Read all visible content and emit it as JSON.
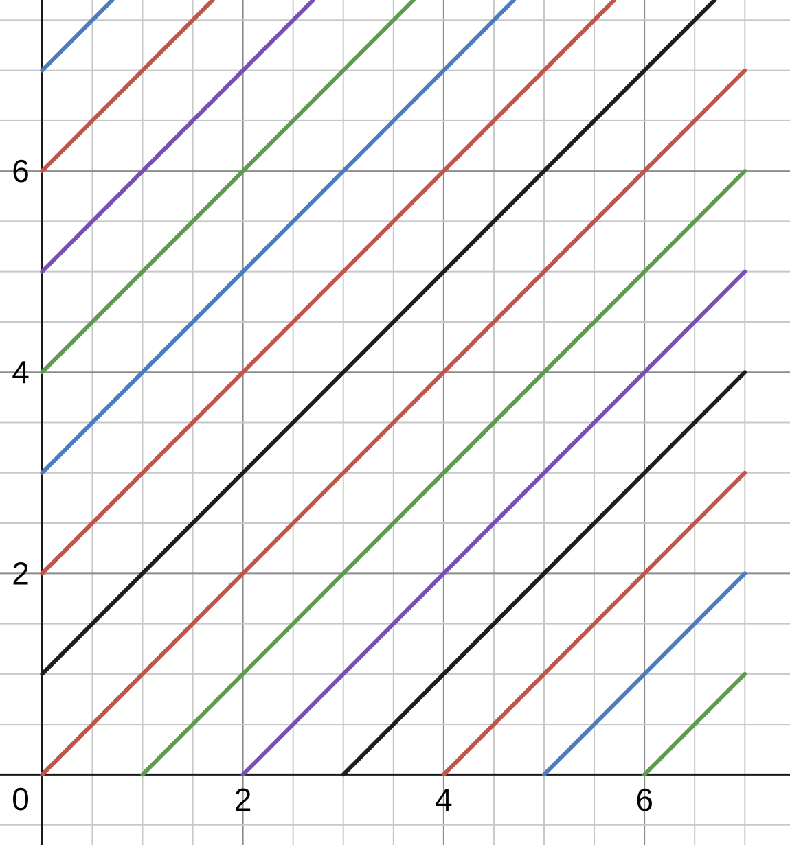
{
  "chart_data": {
    "type": "line",
    "title": "",
    "xlabel": "",
    "ylabel": "",
    "xlim": [
      -0.42,
      7.45
    ],
    "ylim": [
      -0.7,
      7.7
    ],
    "grid": true,
    "minor_grid_step": 0.5,
    "major_grid_step": 2,
    "x_ticks": [
      2,
      4,
      6
    ],
    "y_ticks": [
      2,
      4,
      6
    ],
    "origin_label": "0",
    "x_tick_labels": [
      "2",
      "4",
      "6"
    ],
    "y_tick_labels": [
      "2",
      "4",
      "6"
    ],
    "series": [
      {
        "color": "#4c7bbf",
        "x": [
          0,
          0.7
        ],
        "y": [
          7,
          7.7
        ]
      },
      {
        "color": "#c0564b",
        "x": [
          0,
          1.7
        ],
        "y": [
          6,
          7.7
        ]
      },
      {
        "color": "#7651b5",
        "x": [
          0,
          2.7
        ],
        "y": [
          5,
          7.7
        ]
      },
      {
        "color": "#5e9a50",
        "x": [
          0,
          3.7
        ],
        "y": [
          4,
          7.7
        ]
      },
      {
        "color": "#4c7bbf",
        "x": [
          0,
          4.7
        ],
        "y": [
          3,
          7.7
        ]
      },
      {
        "color": "#c0564b",
        "x": [
          0,
          5.7
        ],
        "y": [
          2,
          7.7
        ]
      },
      {
        "color": "#1e1e1e",
        "x": [
          0,
          6.7
        ],
        "y": [
          1,
          7.7
        ]
      },
      {
        "color": "#c0564b",
        "x": [
          0,
          7
        ],
        "y": [
          0,
          7
        ]
      },
      {
        "color": "#5e9a50",
        "x": [
          1,
          7
        ],
        "y": [
          0,
          6
        ]
      },
      {
        "color": "#7651b5",
        "x": [
          2,
          7
        ],
        "y": [
          0,
          5
        ]
      },
      {
        "color": "#1e1e1e",
        "x": [
          3,
          7
        ],
        "y": [
          0,
          4
        ]
      },
      {
        "color": "#c0564b",
        "x": [
          4,
          7
        ],
        "y": [
          0,
          3
        ]
      },
      {
        "color": "#4c7bbf",
        "x": [
          5,
          7
        ],
        "y": [
          0,
          2
        ]
      },
      {
        "color": "#5e9a50",
        "x": [
          6,
          7
        ],
        "y": [
          0,
          1
        ]
      }
    ]
  }
}
